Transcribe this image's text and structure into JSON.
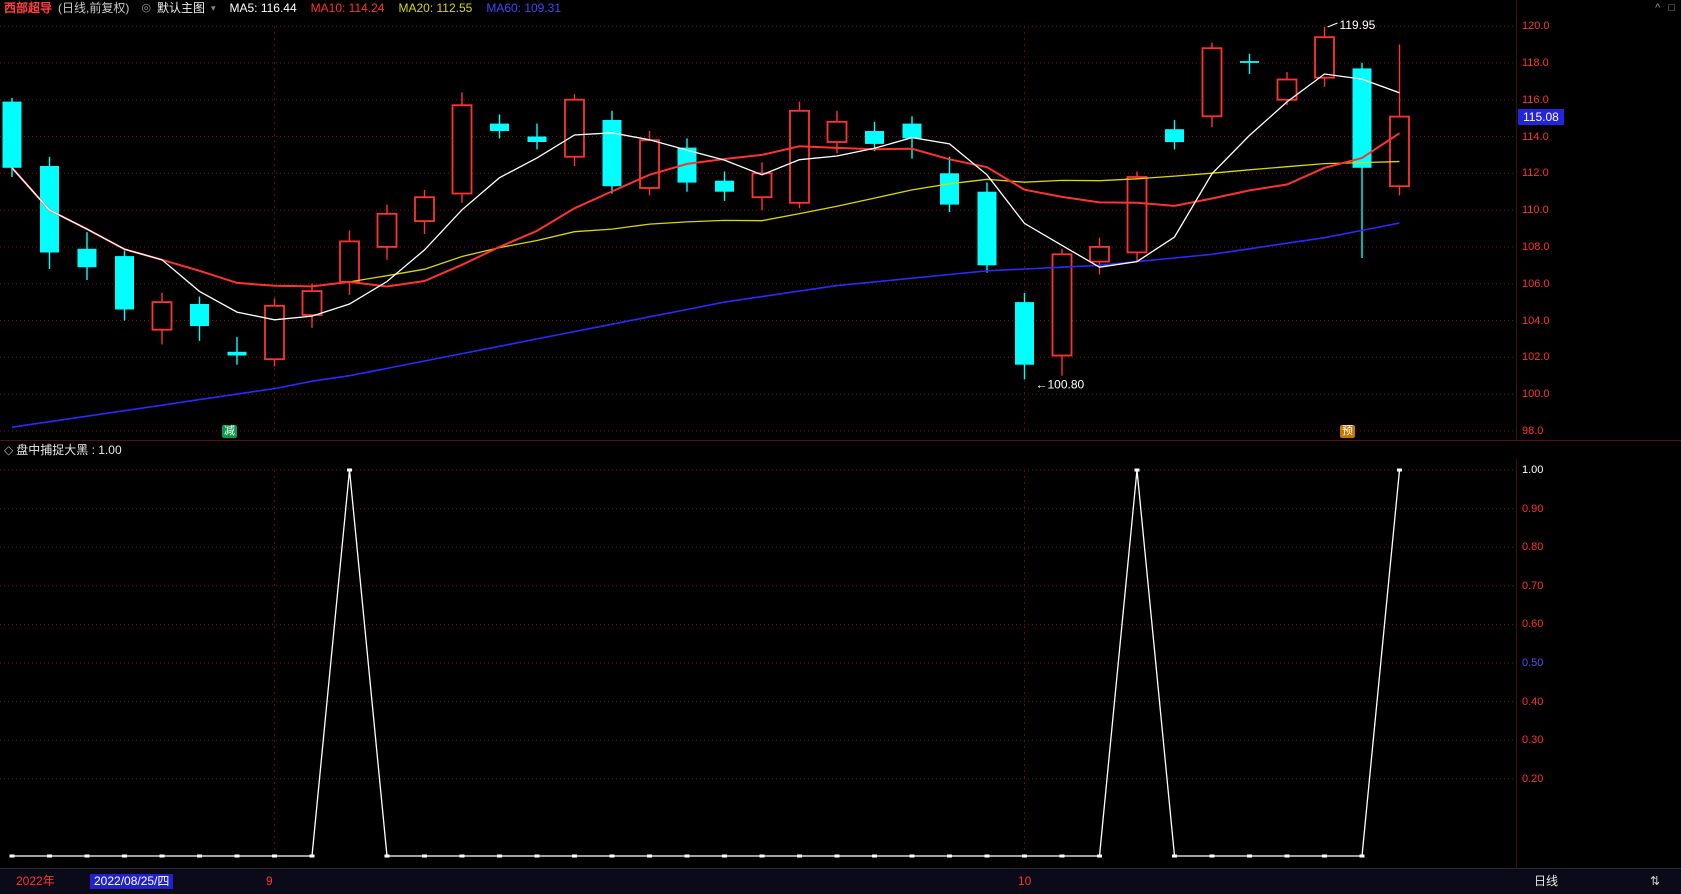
{
  "header": {
    "symbol_name": "西部超导",
    "chart_mode": "(日线,前复权)",
    "layout_selector": "默认主图",
    "ma": [
      {
        "label": "MA5: 116.44",
        "color": "#ffffff"
      },
      {
        "label": "MA10: 114.24",
        "color": "#ff3232"
      },
      {
        "label": "MA20: 112.55",
        "color": "#d8d800"
      },
      {
        "label": "MA60: 109.31",
        "color": "#4444ff"
      }
    ]
  },
  "icons": {
    "layout": "◎",
    "dropdown": "▾",
    "collapse": "^",
    "window": "□",
    "indicator": "◇",
    "scroll": "⇅"
  },
  "main_axis": {
    "labels": [
      "120.0",
      "118.0",
      "116.0",
      "114.0",
      "112.0",
      "110.0",
      "108.0",
      "106.0",
      "104.0",
      "102.0",
      "100.0",
      "98.0"
    ],
    "values": [
      120,
      118,
      116,
      114,
      112,
      110,
      108,
      106,
      104,
      102,
      100,
      98
    ],
    "current_price": "115.08",
    "current_price_value": 115.08
  },
  "markers": {
    "reduce_badge": "减",
    "forecast_badge": "预"
  },
  "annotations": {
    "high_label": "119.95",
    "low_label": "←100.80"
  },
  "indicator": {
    "name": "盘中捕捉大黑",
    "sep": " : ",
    "value": "1.00",
    "axis": [
      {
        "label": "1.00",
        "color": "#ffffff"
      },
      {
        "label": "0.90",
        "color": "#ff3232"
      },
      {
        "label": "0.80",
        "color": "#ff3232"
      },
      {
        "label": "0.70",
        "color": "#ff3232"
      },
      {
        "label": "0.60",
        "color": "#ff3232"
      },
      {
        "label": "0.50",
        "color": "#5050ff"
      },
      {
        "label": "0.40",
        "color": "#ff3232"
      },
      {
        "label": "0.30",
        "color": "#ff3232"
      },
      {
        "label": "0.20",
        "color": "#ff3232"
      }
    ],
    "axis_values": [
      1.0,
      0.9,
      0.8,
      0.7,
      0.6,
      0.5,
      0.4,
      0.3,
      0.2
    ]
  },
  "bottom_bar": {
    "year": "2022年",
    "selected_date": "2022/08/25/四",
    "month1": "9",
    "month2": "10",
    "period": "日线"
  },
  "chart_data": [
    {
      "type": "candlestick",
      "title": "西部超导 日线 前复权",
      "ylim": [
        98,
        120.7
      ],
      "y_ticks": [
        120,
        118,
        116,
        114,
        112,
        110,
        108,
        106,
        104,
        102,
        100,
        98
      ],
      "up_color": "#ff3232",
      "down_color": "#00ffff",
      "ma_colors": {
        "ma5": "#ffffff",
        "ma10": "#ff3232",
        "ma20": "#d8d800",
        "ma60": "#2a2aff"
      },
      "month_tick_indices": [
        7,
        27
      ],
      "high_point": 119.95,
      "low_point": 100.8,
      "last_close": 115.08,
      "candles": [
        [
          115.9,
          116.1,
          111.8,
          112.3
        ],
        [
          112.4,
          112.9,
          106.8,
          107.7
        ],
        [
          107.9,
          108.8,
          106.2,
          106.9
        ],
        [
          107.5,
          107.8,
          104.0,
          104.6
        ],
        [
          103.5,
          105.5,
          102.7,
          105.0
        ],
        [
          104.9,
          105.3,
          102.9,
          103.7
        ],
        [
          102.3,
          103.1,
          101.6,
          102.1
        ],
        [
          101.9,
          105.2,
          101.5,
          104.8
        ],
        [
          104.3,
          106.0,
          103.6,
          105.6
        ],
        [
          106.1,
          108.9,
          105.4,
          108.3
        ],
        [
          108.0,
          110.3,
          107.3,
          109.8
        ],
        [
          109.4,
          111.1,
          108.7,
          110.7
        ],
        [
          110.9,
          116.4,
          110.4,
          115.7
        ],
        [
          114.7,
          115.2,
          113.9,
          114.3
        ],
        [
          114.0,
          114.7,
          113.3,
          113.7
        ],
        [
          112.9,
          116.3,
          112.4,
          116.0
        ],
        [
          114.9,
          115.4,
          110.9,
          111.3
        ],
        [
          111.2,
          114.3,
          110.8,
          113.8
        ],
        [
          113.4,
          113.9,
          111.0,
          111.5
        ],
        [
          111.6,
          112.1,
          110.5,
          111.0
        ],
        [
          110.7,
          112.6,
          110.0,
          112.0
        ],
        [
          110.4,
          115.9,
          110.1,
          115.4
        ],
        [
          113.7,
          115.4,
          113.1,
          114.8
        ],
        [
          114.3,
          114.8,
          113.2,
          113.6
        ],
        [
          114.7,
          115.1,
          112.8,
          113.9
        ],
        [
          112.0,
          112.9,
          109.9,
          110.3
        ],
        [
          111.0,
          111.5,
          106.6,
          107.0
        ],
        [
          105.0,
          105.5,
          100.8,
          101.6
        ],
        [
          102.1,
          107.9,
          101.0,
          107.6
        ],
        [
          107.2,
          108.5,
          106.5,
          108.0
        ],
        [
          107.7,
          112.1,
          107.2,
          111.8
        ],
        [
          114.4,
          114.9,
          113.3,
          113.7
        ],
        [
          115.1,
          119.1,
          114.5,
          118.8
        ],
        [
          118.1,
          118.5,
          117.4,
          118.0
        ],
        [
          116.0,
          117.5,
          115.7,
          117.1
        ],
        [
          117.2,
          119.95,
          116.7,
          119.4
        ],
        [
          117.7,
          118.0,
          107.4,
          112.3
        ],
        [
          111.3,
          119.0,
          110.8,
          115.08
        ]
      ],
      "ma60": [
        98.2,
        98.5,
        98.8,
        99.1,
        99.4,
        99.7,
        100.0,
        100.3,
        100.7,
        101.0,
        101.4,
        101.8,
        102.2,
        102.6,
        103.0,
        103.4,
        103.8,
        104.2,
        104.6,
        105.0,
        105.3,
        105.6,
        105.9,
        106.1,
        106.3,
        106.5,
        106.7,
        106.8,
        106.9,
        107.0,
        107.2,
        107.4,
        107.6,
        107.9,
        108.2,
        108.5,
        108.9,
        109.3
      ]
    },
    {
      "type": "line",
      "title": "盘中捕捉大黑",
      "ylim": [
        0,
        1.06
      ],
      "y_ticks": [
        1.0,
        0.9,
        0.8,
        0.7,
        0.6,
        0.5,
        0.4,
        0.3,
        0.2
      ],
      "line_color": "#ffffff",
      "values": [
        0,
        0,
        0,
        0,
        0,
        0,
        0,
        0,
        0,
        1,
        0,
        0,
        0,
        0,
        0,
        0,
        0,
        0,
        0,
        0,
        0,
        0,
        0,
        0,
        0,
        0,
        0,
        0,
        0,
        0,
        1,
        0,
        0,
        0,
        0,
        0,
        0,
        1
      ]
    }
  ]
}
